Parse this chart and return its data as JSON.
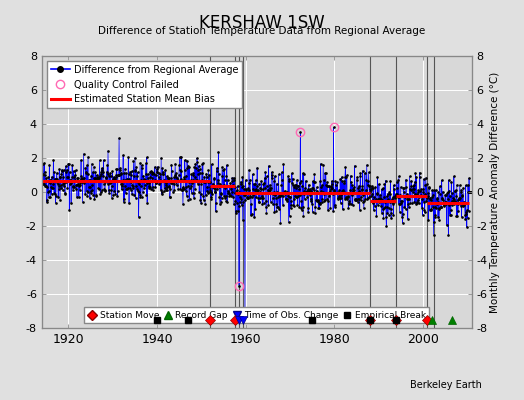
{
  "title": "KERSHAW 1SW",
  "subtitle": "Difference of Station Temperature Data from Regional Average",
  "ylabel": "Monthly Temperature Anomaly Difference (°C)",
  "xlabel_years": [
    1920,
    1940,
    1960,
    1980,
    2000
  ],
  "xlim": [
    1914,
    2011
  ],
  "ylim": [
    -8,
    8
  ],
  "yticks": [
    -8,
    -6,
    -4,
    -2,
    0,
    2,
    4,
    6,
    8
  ],
  "background_color": "#e0e0e0",
  "plot_bg_color": "#d8d8d8",
  "segment_biases": [
    {
      "start": 1914.0,
      "end": 1952.0,
      "bias": 0.65
    },
    {
      "start": 1952.0,
      "end": 1957.5,
      "bias": 0.35
    },
    {
      "start": 1957.5,
      "end": 1988.0,
      "bias": -0.05
    },
    {
      "start": 1988.0,
      "end": 1994.0,
      "bias": -0.55
    },
    {
      "start": 1994.0,
      "end": 2001.0,
      "bias": -0.25
    },
    {
      "start": 2001.0,
      "end": 2010.5,
      "bias": -0.65
    }
  ],
  "vertical_lines": [
    1952.0,
    1957.5,
    1958.5,
    1959.5,
    1988.0,
    1994.0,
    2001.0,
    2002.5
  ],
  "station_moves": [
    1952.0,
    1957.5,
    1988.0,
    1994.0,
    2001.0
  ],
  "record_gaps": [
    2002.0,
    2006.5
  ],
  "time_obs_changes": [
    1958.5,
    1959.5
  ],
  "empirical_breaks": [
    1940.0,
    1947.0,
    1975.0,
    1988.0,
    1994.0
  ],
  "seed": 42,
  "noise_std": 0.65,
  "spikes": [
    {
      "t": 1958.5,
      "v": -5.5
    },
    {
      "t": 1959.8,
      "v": -7.3
    },
    {
      "t": 1972.3,
      "v": 3.5
    },
    {
      "t": 1979.8,
      "v": 3.8
    }
  ],
  "qc_threshold": 2.0
}
